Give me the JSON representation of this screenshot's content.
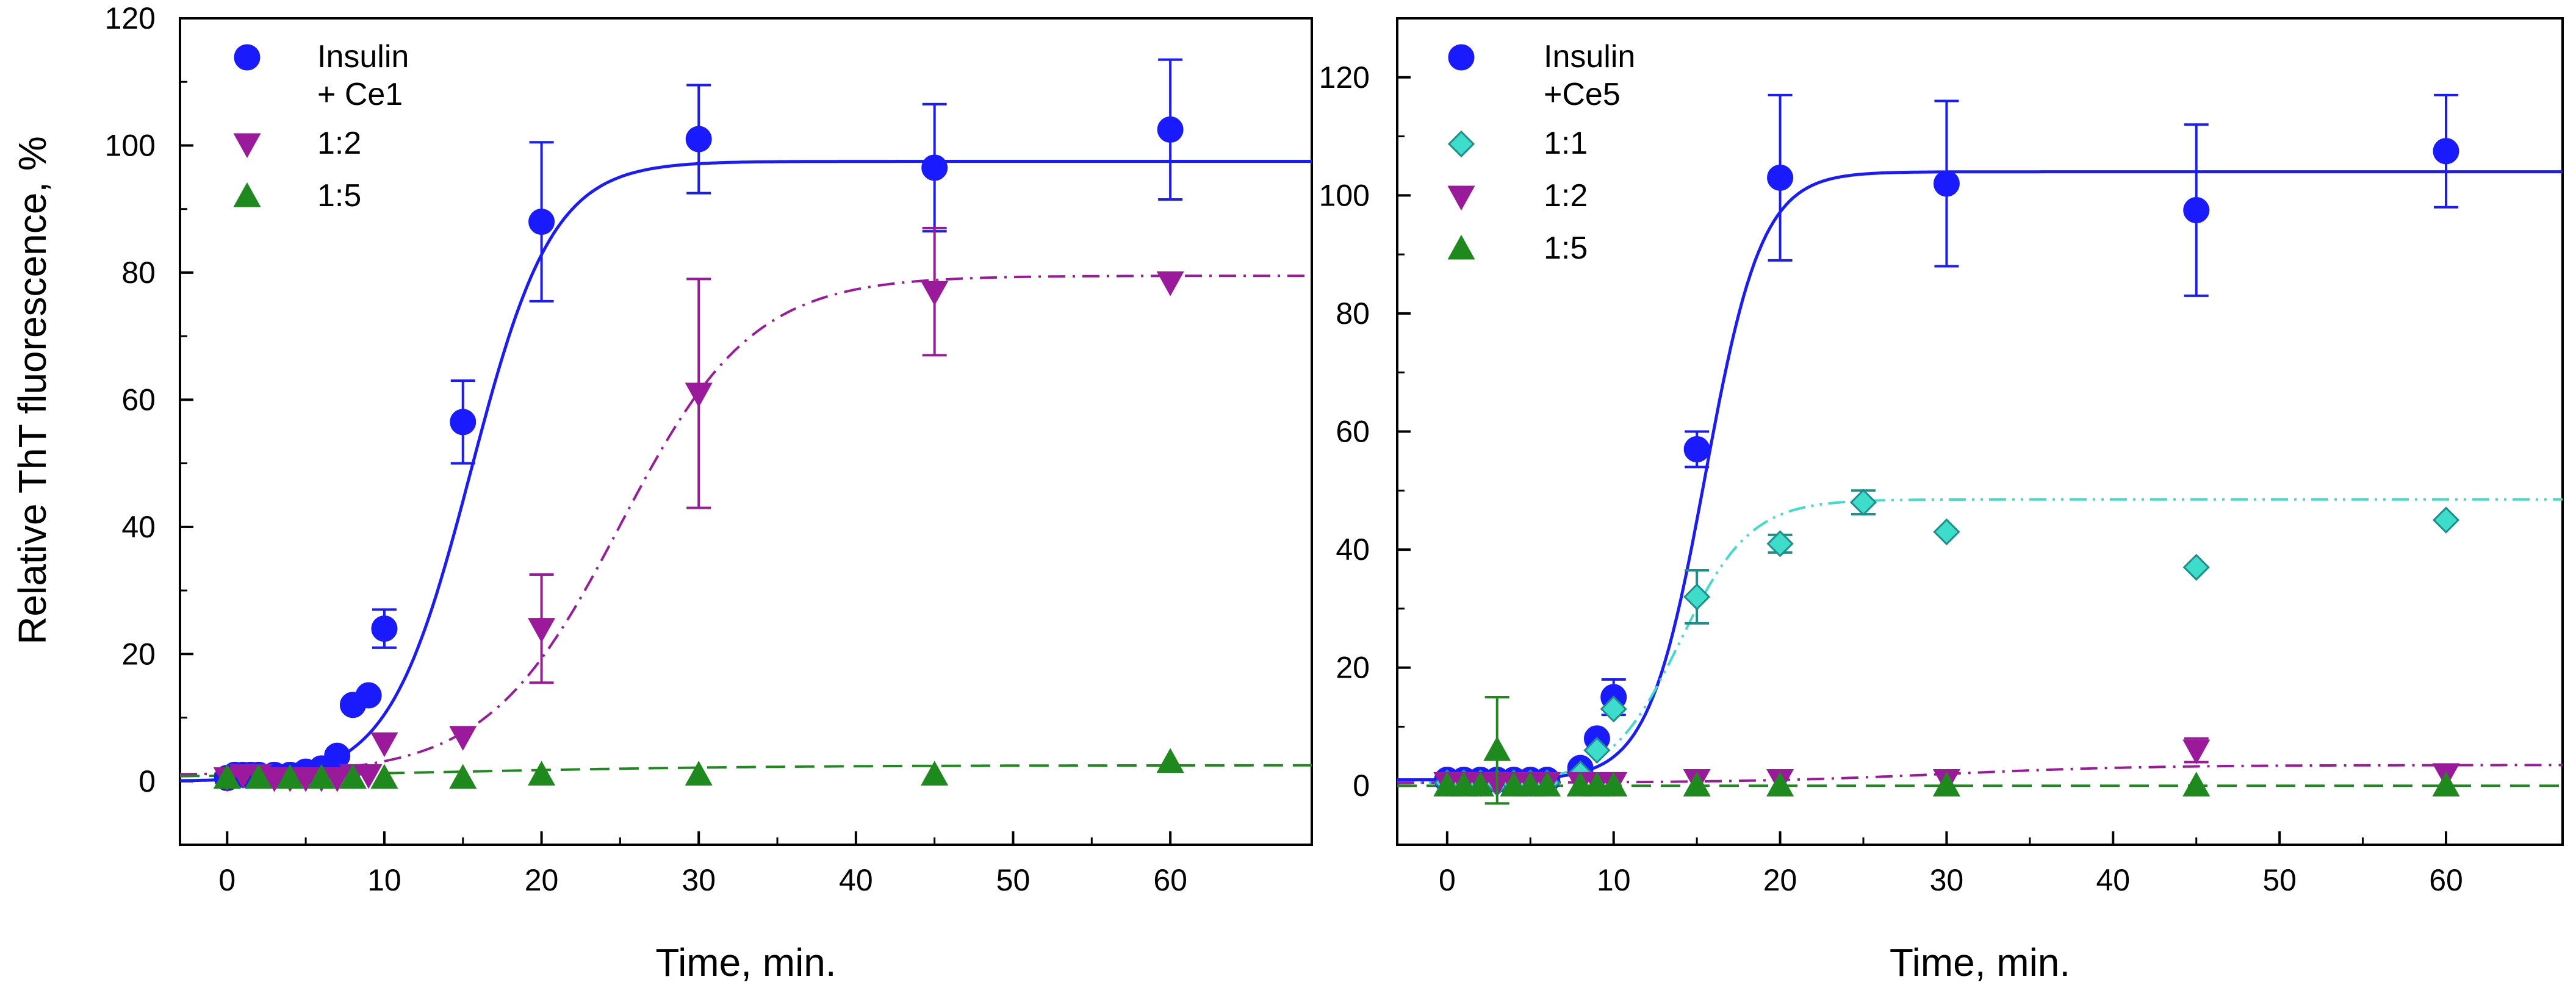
{
  "shared_ylabel": "Relative ThT fluorescence, %",
  "chart_data": [
    {
      "type": "scatter",
      "panel": "left",
      "xlabel": "Time, min.",
      "ylabel": "Relative ThT fluorescence, %",
      "xlim": [
        -3,
        69
      ],
      "ylim": [
        -10,
        120
      ],
      "xticks": [
        0,
        10,
        20,
        30,
        40,
        50,
        60
      ],
      "yticks": [
        0,
        20,
        40,
        60,
        80,
        100,
        120
      ],
      "legend_title_lines": [
        "Insulin",
        "+ Ce1"
      ],
      "legend_position": "top-left",
      "series": [
        {
          "name": "Insulin",
          "color": "#1a1aff",
          "marker": "circle",
          "x": [
            0,
            0.5,
            1,
            1.5,
            2,
            3,
            4,
            5,
            6,
            7,
            8,
            9,
            10,
            15,
            20,
            30,
            45,
            60
          ],
          "y": [
            0.5,
            1,
            1,
            1,
            1,
            1,
            1,
            1.5,
            2,
            4,
            12,
            13.5,
            24,
            56.5,
            88,
            101,
            96.5,
            102.5
          ],
          "err": [
            0,
            0,
            0,
            0,
            0,
            0,
            0,
            0,
            0,
            0,
            0,
            0,
            3,
            6.5,
            12.5,
            8.5,
            10,
            11
          ],
          "fit": {
            "style": "solid",
            "y0": 0,
            "ymax": 97.5,
            "t50": 15.5,
            "k": 2.6
          }
        },
        {
          "name": "1:2",
          "color": "#9b1a9b",
          "marker": "triangle-down",
          "x": [
            0,
            1,
            2,
            3,
            4,
            5,
            6,
            7,
            8,
            9,
            10,
            15,
            20,
            30,
            45,
            60
          ],
          "y": [
            0.5,
            1,
            1,
            0.5,
            0.5,
            0.5,
            0.5,
            0.5,
            1,
            1,
            6,
            7,
            24,
            61,
            77,
            78.5
          ],
          "err": [
            0,
            0,
            0,
            0,
            0,
            0,
            0,
            0,
            0,
            0,
            0,
            0,
            8.5,
            18,
            10,
            0
          ],
          "fit": {
            "style": "dashdot",
            "y0": 1,
            "ymax": 79.5,
            "t50": 25,
            "k": 4.2
          }
        },
        {
          "name": "1:5",
          "color": "#1e8a1e",
          "marker": "triangle-up",
          "x": [
            0,
            2,
            4,
            6,
            8,
            10,
            15,
            20,
            30,
            45,
            60
          ],
          "y": [
            0.5,
            0.5,
            0.5,
            0.5,
            0.5,
            0.5,
            0.5,
            1,
            1,
            1,
            3
          ],
          "err": [
            0,
            0,
            0,
            0,
            0,
            0,
            0,
            0,
            0,
            0,
            0
          ],
          "fit": {
            "style": "dashed",
            "y0": 0.5,
            "ymax": 2.5,
            "t50": 15,
            "k": 10
          }
        }
      ]
    },
    {
      "type": "scatter",
      "panel": "right",
      "xlabel": "Time, min.",
      "ylabel": "",
      "xlim": [
        -3,
        67
      ],
      "ylim": [
        -10,
        130
      ],
      "xticks": [
        0,
        10,
        20,
        30,
        40,
        50,
        60
      ],
      "yticks": [
        0,
        20,
        40,
        60,
        80,
        100,
        120
      ],
      "legend_title_lines": [
        "Insulin",
        "+Ce5"
      ],
      "legend_position": "top-left",
      "series": [
        {
          "name": "Insulin",
          "color": "#1a1aff",
          "marker": "circle",
          "x": [
            0,
            1,
            2,
            3,
            4,
            5,
            6,
            8,
            9,
            10,
            15,
            20,
            30,
            45,
            60
          ],
          "y": [
            1,
            1,
            1,
            1,
            1,
            1,
            1,
            3,
            8,
            15,
            57,
            103,
            102,
            97.5,
            107.5
          ],
          "err": [
            0,
            0,
            0,
            0,
            0,
            0,
            0,
            0,
            0,
            3,
            3,
            14,
            14,
            14.5,
            9.5
          ],
          "fit": {
            "style": "solid",
            "y0": 1,
            "ymax": 104,
            "t50": 15.5,
            "k": 1.7
          }
        },
        {
          "name": "1:1",
          "color": "#3ddccb",
          "marker": "diamond",
          "x": [
            0,
            1,
            2,
            3,
            4,
            5,
            6,
            8,
            9,
            10,
            15,
            20,
            25,
            30,
            45,
            60
          ],
          "y": [
            0.5,
            0.5,
            0.5,
            0.5,
            0.5,
            0.5,
            0.5,
            2,
            6,
            13,
            32,
            41,
            48,
            43,
            37,
            45
          ],
          "err": [
            0,
            0,
            0,
            0,
            0,
            0,
            0,
            0,
            0,
            0,
            4.5,
            1.5,
            2,
            0,
            0,
            0
          ],
          "fit": {
            "style": "dashdotdot",
            "y0": 0.5,
            "ymax": 48.5,
            "t50": 14,
            "k": 2.1
          }
        },
        {
          "name": "1:2",
          "color": "#9b1a9b",
          "marker": "triangle-down",
          "x": [
            0,
            1,
            2,
            3,
            4,
            5,
            6,
            8,
            9,
            10,
            15,
            20,
            30,
            45,
            60
          ],
          "y": [
            0.5,
            0.5,
            0.5,
            0.5,
            0.5,
            0.5,
            0.5,
            0.5,
            0.5,
            0.5,
            1,
            1,
            1,
            6,
            2
          ],
          "err": [
            0,
            0,
            0,
            0,
            0,
            0,
            0,
            0,
            0,
            0,
            0,
            0,
            0,
            2,
            0
          ],
          "fit": {
            "style": "dashdot",
            "y0": 0.5,
            "ymax": 3.5,
            "t50": 30,
            "k": 6
          }
        },
        {
          "name": "1:5",
          "color": "#1e8a1e",
          "marker": "triangle-up",
          "x": [
            0,
            1,
            2,
            3,
            4,
            5,
            6,
            8,
            9,
            10,
            15,
            20,
            30,
            45,
            60
          ],
          "y": [
            0,
            0,
            0,
            6,
            0,
            0,
            0,
            0,
            0,
            0,
            0,
            0,
            0,
            0,
            0
          ],
          "err": [
            0,
            0,
            0,
            9,
            0,
            0,
            0,
            0,
            0,
            0,
            0,
            0,
            0,
            0,
            0
          ],
          "fit": {
            "style": "dashed",
            "y0": 0,
            "ymax": 0,
            "t50": 15,
            "k": 10
          }
        }
      ]
    }
  ]
}
